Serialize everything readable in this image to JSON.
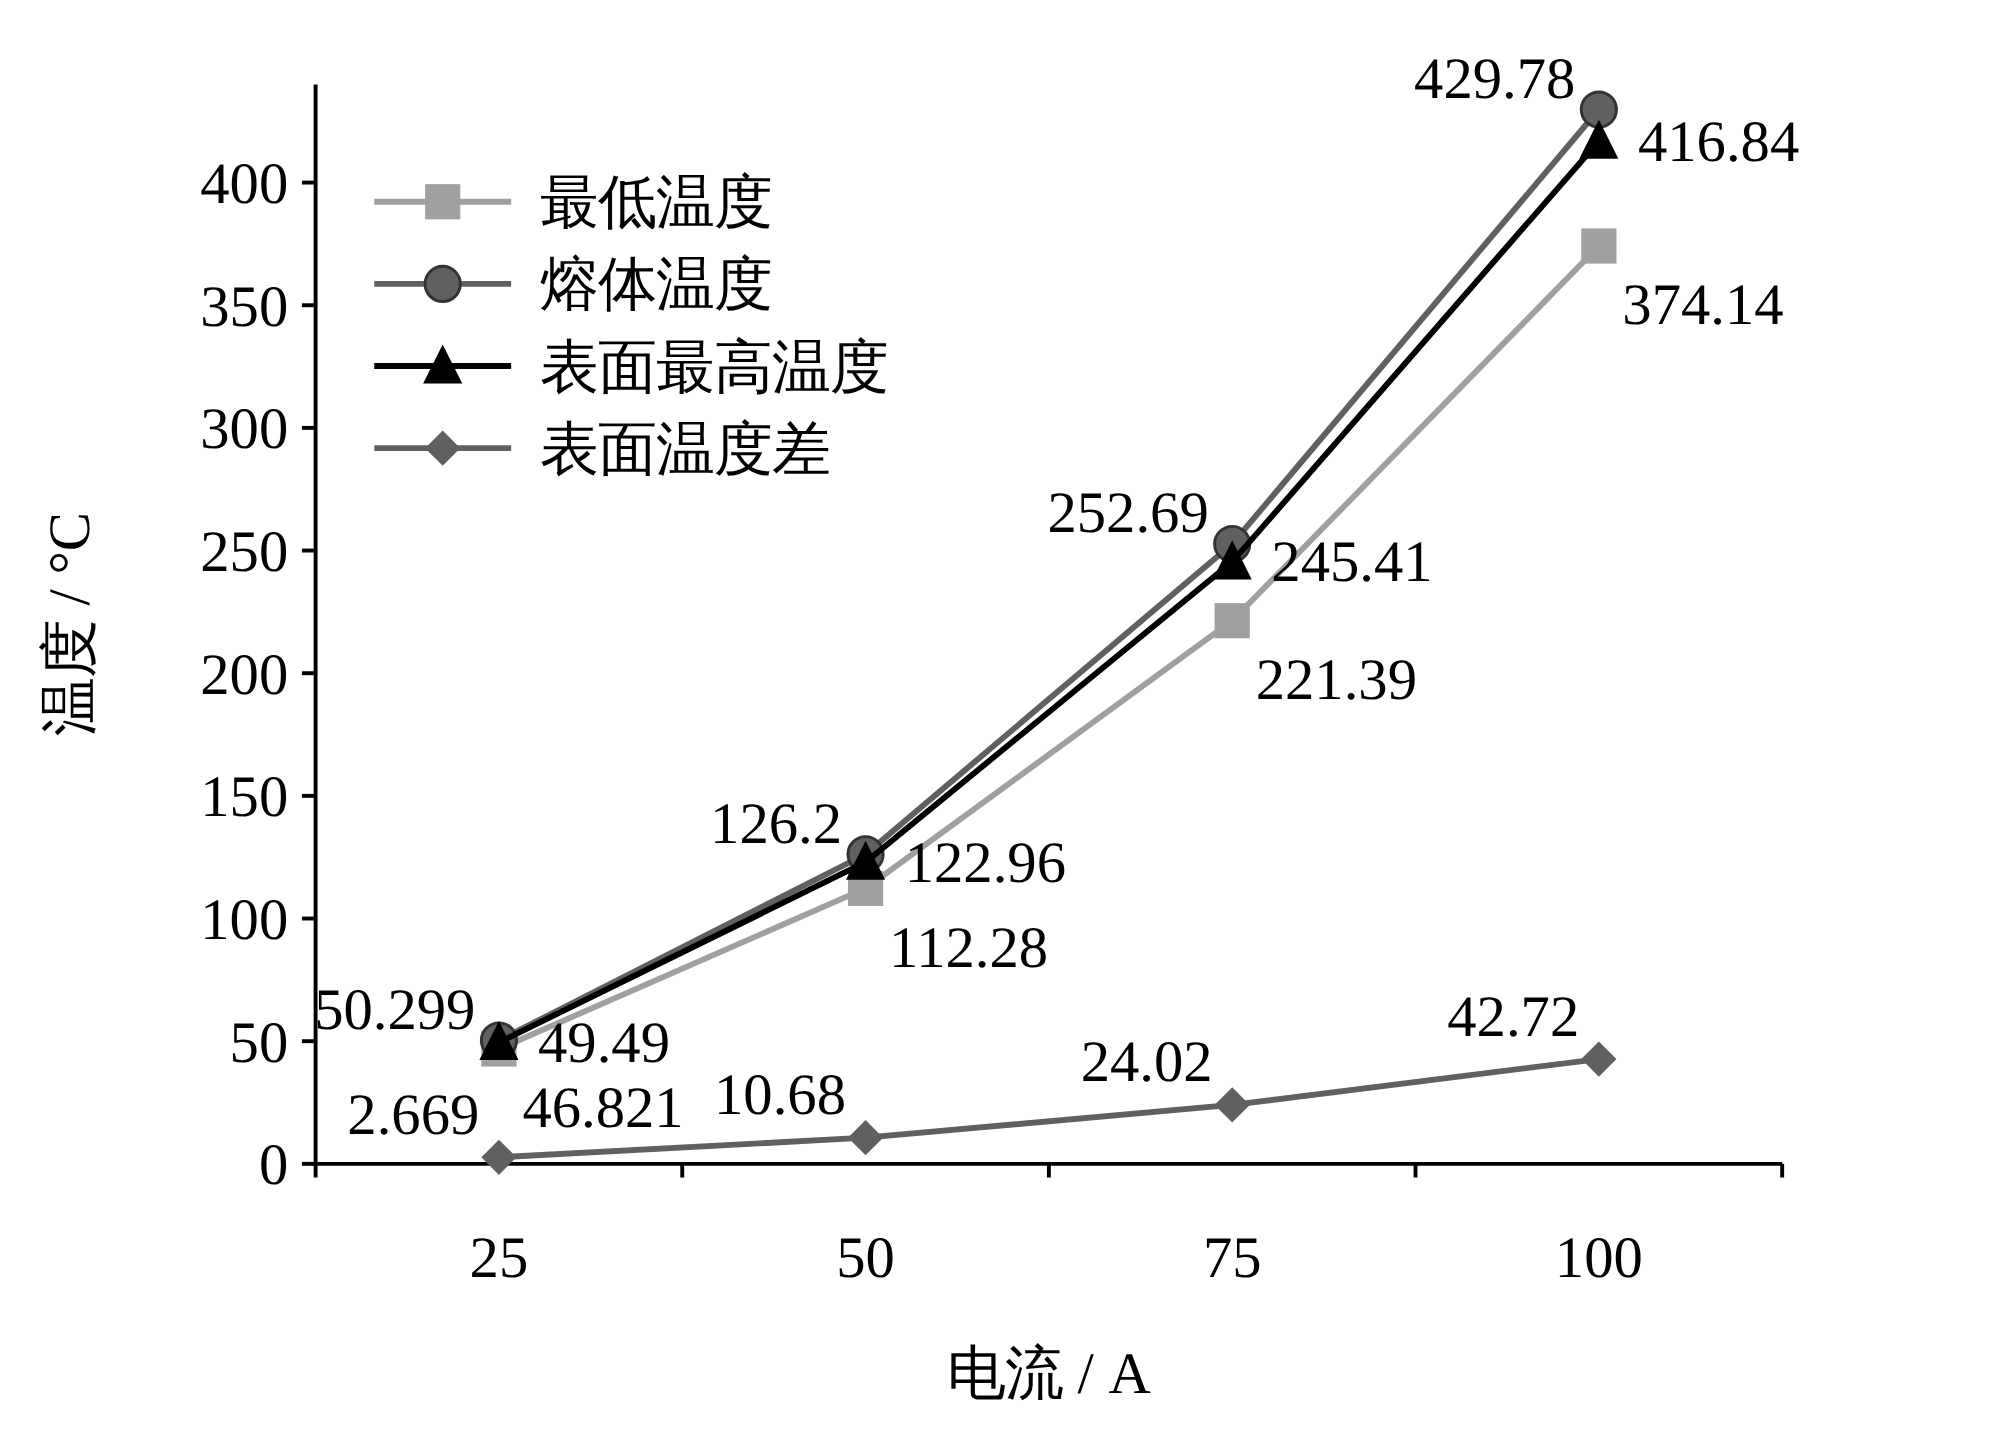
{
  "chart_data": {
    "type": "line",
    "xlabel": "电流 / A",
    "ylabel": "温度 / °C",
    "categories": [
      "25",
      "50",
      "75",
      "100"
    ],
    "ylim": [
      0,
      440
    ],
    "yticks": [
      0,
      50,
      100,
      150,
      200,
      250,
      300,
      350,
      400
    ],
    "grid": false,
    "legend": "top left",
    "data_labels": true,
    "series": [
      {
        "name": "最低温度",
        "color": "#a0a0a0",
        "marker": "square",
        "values": [
          46.821,
          112.28,
          221.39,
          374.14
        ]
      },
      {
        "name": "熔体温度",
        "color": "#606060",
        "marker": "circle",
        "values": [
          50.299,
          126.2,
          252.69,
          429.78
        ]
      },
      {
        "name": "表面最高温度",
        "color": "#000000",
        "marker": "triangle",
        "values": [
          49.49,
          122.96,
          245.41,
          416.84
        ]
      },
      {
        "name": "表面温度差",
        "color": "#606060",
        "marker": "diamond",
        "values": [
          2.669,
          10.68,
          24.02,
          42.72
        ]
      }
    ]
  }
}
